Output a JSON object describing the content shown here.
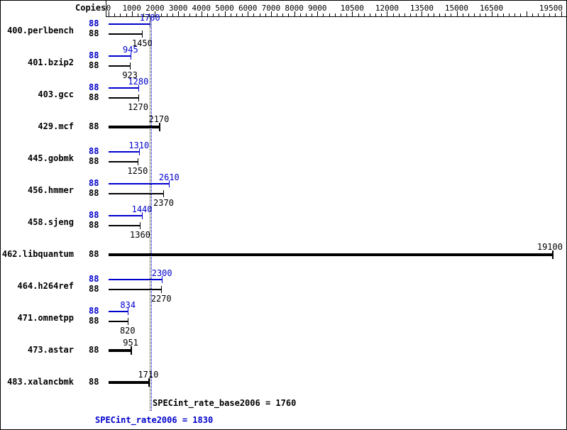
{
  "chart_data": {
    "type": "bar",
    "orientation": "horizontal",
    "copies_header": "Copies",
    "benchmarks": [
      {
        "name": "400.perlbench",
        "copies": 88,
        "base": 1450,
        "peak": 1780,
        "single": false
      },
      {
        "name": "401.bzip2",
        "copies": 88,
        "base": 923,
        "peak": 945,
        "single": false
      },
      {
        "name": "403.gcc",
        "copies": 88,
        "base": 1270,
        "peak": 1280,
        "single": false
      },
      {
        "name": "429.mcf",
        "copies": 88,
        "base": 2170,
        "peak": 2170,
        "single": true
      },
      {
        "name": "445.gobmk",
        "copies": 88,
        "base": 1250,
        "peak": 1310,
        "single": false
      },
      {
        "name": "456.hmmer",
        "copies": 88,
        "base": 2370,
        "peak": 2610,
        "single": false
      },
      {
        "name": "458.sjeng",
        "copies": 88,
        "base": 1360,
        "peak": 1440,
        "single": false
      },
      {
        "name": "462.libquantum",
        "copies": 88,
        "base": 19100,
        "peak": 19100,
        "single": true
      },
      {
        "name": "464.h264ref",
        "copies": 88,
        "base": 2270,
        "peak": 2300,
        "single": false
      },
      {
        "name": "471.omnetpp",
        "copies": 88,
        "base": 820,
        "peak": 834,
        "single": false
      },
      {
        "name": "473.astar",
        "copies": 88,
        "base": 951,
        "peak": 951,
        "single": true
      },
      {
        "name": "483.xalancbmk",
        "copies": 88,
        "base": 1710,
        "peak": 1710,
        "single": true
      }
    ],
    "x_axis": {
      "labeled_ticks": [
        0,
        1000,
        2000,
        3000,
        4000,
        5000,
        6000,
        7000,
        8000,
        9000,
        10500,
        12000,
        13500,
        15000,
        16500,
        19500
      ],
      "unlabeled_major_ticks": [
        18000
      ],
      "minor_step": 250,
      "min": 0,
      "max": 19500
    },
    "summary": {
      "base_label": "SPECint_rate_base2006 = 1760",
      "peak_label": "SPECint_rate2006 = 1830",
      "base_value": 1760,
      "peak_value": 1830
    },
    "colors": {
      "peak": "#0000cd",
      "base": "#000000",
      "background": "#ffffff"
    }
  }
}
